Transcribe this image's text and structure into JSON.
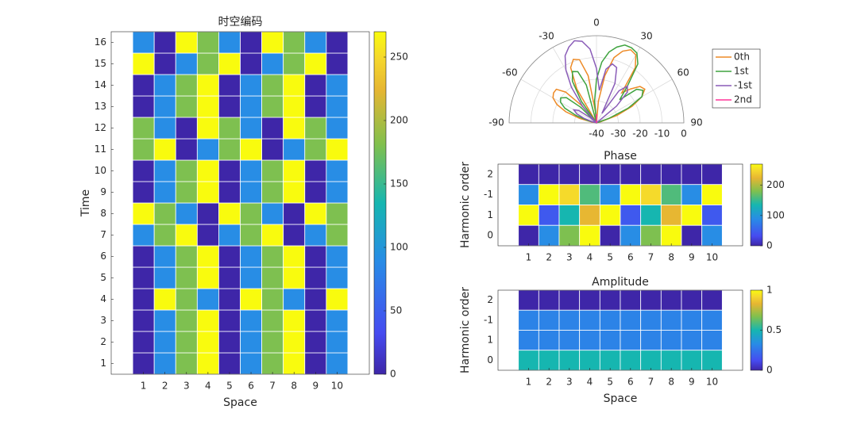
{
  "chart_data": [
    {
      "type": "heatmap",
      "title": "时空编码",
      "xlabel": "Space",
      "ylabel": "Time",
      "x": [
        1,
        2,
        3,
        4,
        5,
        6,
        7,
        8,
        9,
        10
      ],
      "y": [
        1,
        2,
        3,
        4,
        5,
        6,
        7,
        8,
        9,
        10,
        11,
        12,
        13,
        14,
        15,
        16
      ],
      "xlim": [
        -0.5,
        11.5
      ],
      "ylim": [
        0.5,
        16.5
      ],
      "xticks": [
        1,
        2,
        3,
        4,
        5,
        6,
        7,
        8,
        9,
        10
      ],
      "yticks": [
        1,
        2,
        3,
        4,
        5,
        6,
        7,
        8,
        9,
        10,
        11,
        12,
        13,
        14,
        15,
        16
      ],
      "values": [
        [
          0,
          90,
          180,
          270,
          0,
          90,
          180,
          270,
          0,
          90
        ],
        [
          0,
          90,
          180,
          270,
          0,
          90,
          180,
          270,
          0,
          90
        ],
        [
          0,
          90,
          180,
          270,
          0,
          90,
          180,
          270,
          0,
          90
        ],
        [
          0,
          270,
          180,
          90,
          0,
          270,
          180,
          90,
          0,
          270
        ],
        [
          0,
          90,
          180,
          270,
          0,
          90,
          180,
          270,
          0,
          90
        ],
        [
          0,
          90,
          180,
          270,
          0,
          90,
          180,
          270,
          0,
          90
        ],
        [
          90,
          180,
          270,
          0,
          90,
          180,
          270,
          0,
          90,
          180
        ],
        [
          270,
          180,
          90,
          0,
          270,
          180,
          90,
          0,
          270,
          180
        ],
        [
          0,
          90,
          180,
          270,
          0,
          90,
          180,
          270,
          0,
          90
        ],
        [
          0,
          90,
          180,
          270,
          0,
          90,
          180,
          270,
          0,
          90
        ],
        [
          180,
          270,
          0,
          90,
          180,
          270,
          0,
          90,
          180,
          270
        ],
        [
          180,
          90,
          0,
          270,
          180,
          90,
          0,
          270,
          180,
          90
        ],
        [
          0,
          90,
          180,
          270,
          0,
          90,
          180,
          270,
          0,
          90
        ],
        [
          0,
          90,
          180,
          270,
          0,
          90,
          180,
          270,
          0,
          90
        ],
        [
          270,
          0,
          90,
          180,
          270,
          0,
          90,
          180,
          270,
          0
        ],
        [
          90,
          0,
          270,
          180,
          90,
          0,
          270,
          180,
          90,
          0
        ]
      ],
      "clim": [
        0,
        270
      ],
      "cticks": [
        0,
        50,
        100,
        150,
        200,
        250
      ],
      "colormap": "parula"
    },
    {
      "type": "polar",
      "theta": [
        -90,
        -85,
        -80,
        -75,
        -70,
        -65,
        -60,
        -55,
        -50,
        -45,
        -40,
        -35,
        -30,
        -25,
        -20,
        -15,
        -10,
        -5,
        0,
        5,
        10,
        15,
        20,
        25,
        30,
        35,
        40,
        45,
        50,
        55,
        60,
        65,
        70,
        75,
        80,
        85,
        90
      ],
      "thetaticks": [
        -90,
        -60,
        -30,
        0,
        30,
        60,
        90
      ],
      "rlim": [
        -40,
        0
      ],
      "rticks": [
        -40,
        -30,
        -20,
        -10,
        0
      ],
      "legend": "outside right",
      "series": [
        {
          "name": "0th",
          "color": "#ed8a26",
          "values": [
            -40,
            -40,
            -38,
            -32,
            -25,
            -20,
            -17,
            -16,
            -16,
            -20,
            -30,
            -40,
            -22,
            -12,
            -9,
            -10,
            -18,
            -35,
            -40,
            -30,
            -18,
            -9,
            -5,
            -3,
            -4,
            -9,
            -22,
            -18,
            -14,
            -13,
            -16,
            -22,
            -30,
            -38,
            -40,
            -40,
            -40
          ]
        },
        {
          "name": "1st",
          "color": "#3fa33f",
          "values": [
            -40,
            -40,
            -40,
            -36,
            -30,
            -24,
            -21,
            -20,
            -22,
            -30,
            -40,
            -28,
            -18,
            -14,
            -15,
            -22,
            -40,
            -30,
            -20,
            -12,
            -7,
            -4,
            -2,
            -2,
            -3,
            -7,
            -18,
            -25,
            -16,
            -14,
            -16,
            -24,
            -34,
            -40,
            -40,
            -40,
            -40
          ]
        },
        {
          "name": "-1st",
          "color": "#8a5cb8",
          "values": [
            -40,
            -40,
            -40,
            -38,
            -34,
            -30,
            -28,
            -30,
            -36,
            -40,
            -30,
            -20,
            -12,
            -6,
            -3,
            -1,
            -2,
            -6,
            -15,
            -25,
            -15,
            -12,
            -13,
            -20,
            -35,
            -22,
            -18,
            -20,
            -28,
            -40,
            -40,
            -40,
            -40,
            -40,
            -40,
            -40,
            -40
          ]
        },
        {
          "name": "2nd",
          "color": "#ff3399",
          "values": [
            -40,
            -40,
            -40,
            -40,
            -40,
            -40,
            -40,
            -40,
            -40,
            -40,
            -40,
            -40,
            -40,
            -40,
            -40,
            -40,
            -40,
            -40,
            -36,
            -40,
            -40,
            -40,
            -40,
            -40,
            -40,
            -40,
            -40,
            -40,
            -40,
            -40,
            -40,
            -40,
            -40,
            -40,
            -40,
            -40,
            -40
          ]
        }
      ]
    },
    {
      "type": "heatmap",
      "title": "Phase",
      "xlabel": "",
      "ylabel": "Harmonic order",
      "x": [
        1,
        2,
        3,
        4,
        5,
        6,
        7,
        8,
        9,
        10
      ],
      "xlim": [
        -0.5,
        11.5
      ],
      "xticks": [
        1,
        2,
        3,
        4,
        5,
        6,
        7,
        8,
        9,
        10
      ],
      "rows": [
        "2",
        "-1",
        "1",
        "0"
      ],
      "values": [
        [
          0,
          0,
          0,
          0,
          0,
          0,
          0,
          0,
          0,
          0
        ],
        [
          90,
          270,
          250,
          160,
          90,
          270,
          250,
          160,
          90,
          270
        ],
        [
          270,
          45,
          135,
          225,
          270,
          45,
          135,
          225,
          270,
          45
        ],
        [
          0,
          90,
          180,
          270,
          0,
          90,
          180,
          270,
          0,
          90
        ]
      ],
      "clim": [
        0,
        270
      ],
      "cticks": [
        0,
        100,
        200
      ],
      "colormap": "parula"
    },
    {
      "type": "heatmap",
      "title": "Amplitude",
      "xlabel": "Space",
      "ylabel": "Harmonic order",
      "x": [
        1,
        2,
        3,
        4,
        5,
        6,
        7,
        8,
        9,
        10
      ],
      "xlim": [
        -0.5,
        11.5
      ],
      "xticks": [
        1,
        2,
        3,
        4,
        5,
        6,
        7,
        8,
        9,
        10
      ],
      "rows": [
        "2",
        "-1",
        "1",
        "0"
      ],
      "values": [
        [
          0,
          0,
          0,
          0,
          0,
          0,
          0,
          0,
          0,
          0
        ],
        [
          0.3,
          0.3,
          0.3,
          0.3,
          0.3,
          0.3,
          0.3,
          0.3,
          0.3,
          0.3
        ],
        [
          0.3,
          0.3,
          0.3,
          0.3,
          0.3,
          0.3,
          0.3,
          0.3,
          0.3,
          0.3
        ],
        [
          0.5,
          0.5,
          0.5,
          0.5,
          0.5,
          0.5,
          0.5,
          0.5,
          0.5,
          0.5
        ]
      ],
      "clim": [
        0,
        1
      ],
      "cticks": [
        0,
        0.5,
        1
      ],
      "colormap": "parula"
    }
  ]
}
